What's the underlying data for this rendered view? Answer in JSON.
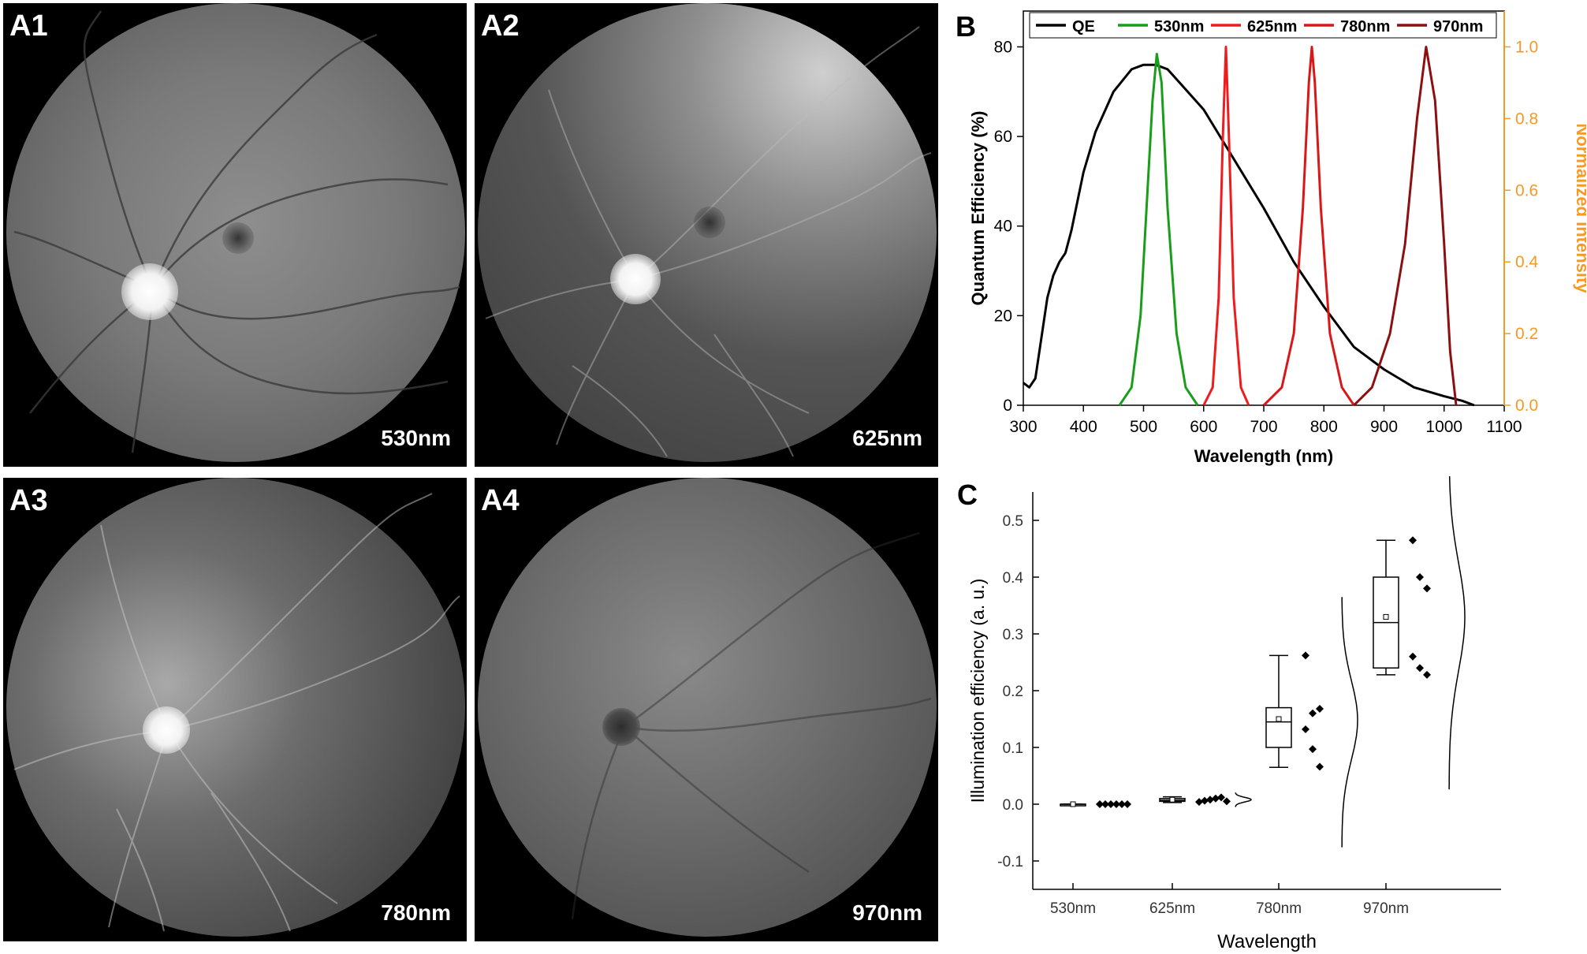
{
  "panels": [
    {
      "id": "A1",
      "label": "A1",
      "wavelength_label": "530nm"
    },
    {
      "id": "A2",
      "label": "A2",
      "wavelength_label": "625nm"
    },
    {
      "id": "A3",
      "label": "A3",
      "wavelength_label": "780nm"
    },
    {
      "id": "A4",
      "label": "A4",
      "wavelength_label": "970nm"
    }
  ],
  "chart_data": [
    {
      "panel_label": "B",
      "type": "line",
      "xlabel": "Wavelength (nm)",
      "ylabel": "Quantum Efficiency (%)",
      "y2label": "Normalized Intensity",
      "xlim": [
        300,
        1100
      ],
      "ylim": [
        0,
        88
      ],
      "y2lim": [
        0,
        1.1
      ],
      "xticks": [
        "300",
        "400",
        "500",
        "600",
        "700",
        "800",
        "900",
        "1000",
        "1100"
      ],
      "yticks": [
        "0",
        "20",
        "40",
        "60",
        "80"
      ],
      "y2ticks": [
        "0.0",
        "0.2",
        "0.4",
        "0.6",
        "0.8",
        "1.0"
      ],
      "legend_position": "top",
      "colors": {
        "QE": "#000000",
        "530nm": "#1a9e1a",
        "625nm": "#ee1c1c",
        "780nm": "#d81818",
        "970nm": "#8c1010",
        "right_axis": "#f59a23"
      },
      "series": [
        {
          "name": "QE",
          "axis": "left",
          "x": [
            300,
            310,
            320,
            330,
            340,
            350,
            360,
            370,
            380,
            400,
            420,
            450,
            480,
            500,
            520,
            540,
            560,
            600,
            650,
            700,
            750,
            800,
            850,
            900,
            950,
            1000,
            1030,
            1050
          ],
          "y": [
            5,
            4,
            6,
            15,
            24,
            29,
            32,
            34,
            39,
            52,
            61,
            70,
            75,
            76,
            76,
            75,
            72,
            66,
            55,
            44,
            32,
            22,
            13,
            8,
            4,
            2,
            1,
            0
          ]
        },
        {
          "name": "530nm",
          "axis": "right",
          "x": [
            460,
            480,
            495,
            505,
            515,
            522,
            530,
            540,
            555,
            570,
            590
          ],
          "y": [
            0,
            0.05,
            0.25,
            0.55,
            0.85,
            0.98,
            0.9,
            0.55,
            0.2,
            0.05,
            0
          ]
        },
        {
          "name": "625nm",
          "axis": "right",
          "x": [
            600,
            615,
            625,
            632,
            637,
            642,
            650,
            662,
            675
          ],
          "y": [
            0,
            0.05,
            0.3,
            0.75,
            1.0,
            0.75,
            0.3,
            0.05,
            0
          ]
        },
        {
          "name": "780nm",
          "axis": "right",
          "x": [
            700,
            730,
            750,
            765,
            775,
            780,
            785,
            795,
            810,
            830,
            850
          ],
          "y": [
            0,
            0.05,
            0.2,
            0.55,
            0.9,
            1.0,
            0.9,
            0.55,
            0.2,
            0.05,
            0
          ]
        },
        {
          "name": "970nm",
          "axis": "right",
          "x": [
            850,
            880,
            910,
            935,
            955,
            970,
            985,
            1000,
            1010,
            1020
          ],
          "y": [
            0,
            0.05,
            0.2,
            0.45,
            0.8,
            1.0,
            0.85,
            0.45,
            0.15,
            0
          ]
        }
      ]
    },
    {
      "panel_label": "C",
      "type": "box",
      "xlabel": "Wavelength",
      "ylabel": "Illumination efficiency (a. u.)",
      "ylim": [
        -0.15,
        0.55
      ],
      "yticks": [
        "-0.1",
        "0.0",
        "0.1",
        "0.2",
        "0.3",
        "0.4",
        "0.5"
      ],
      "categories": [
        "530nm",
        "625nm",
        "780nm",
        "970nm"
      ],
      "boxes": [
        {
          "min": 0.0,
          "q1": 0.0,
          "median": 0.0,
          "q3": 0.0,
          "max": 0.0,
          "mean": 0.0
        },
        {
          "min": 0.003,
          "q1": 0.005,
          "median": 0.007,
          "q3": 0.01,
          "max": 0.013,
          "mean": 0.008
        },
        {
          "min": 0.065,
          "q1": 0.1,
          "median": 0.145,
          "q3": 0.17,
          "max": 0.262,
          "mean": 0.15
        },
        {
          "min": 0.228,
          "q1": 0.24,
          "median": 0.32,
          "q3": 0.4,
          "max": 0.465,
          "mean": 0.33
        }
      ],
      "points": [
        [
          0.0,
          0.0,
          0.0,
          0.0,
          0.0,
          0.0
        ],
        [
          0.004,
          0.006,
          0.008,
          0.01,
          0.012,
          0.005
        ],
        [
          0.262,
          0.16,
          0.168,
          0.132,
          0.097,
          0.066
        ],
        [
          0.465,
          0.4,
          0.38,
          0.26,
          0.24,
          0.228
        ]
      ],
      "distribution_curves": [
        {
          "mean": 0.0,
          "sd": 0.0
        },
        {
          "mean": 0.008,
          "sd": 0.004
        },
        {
          "mean": 0.148,
          "sd": 0.07
        },
        {
          "mean": 0.33,
          "sd": 0.095
        }
      ]
    }
  ]
}
